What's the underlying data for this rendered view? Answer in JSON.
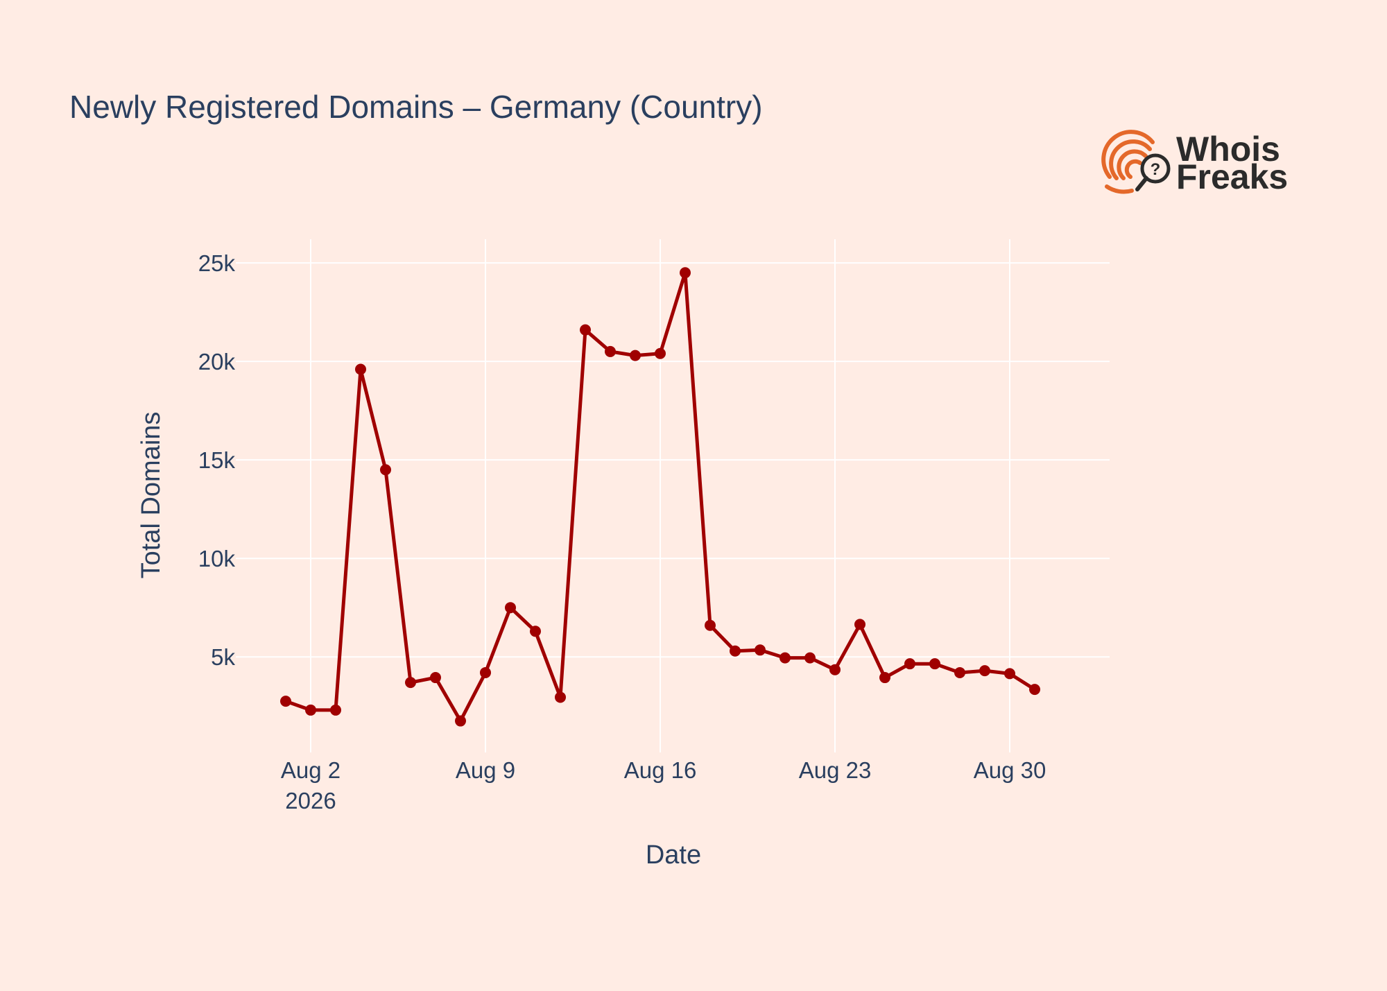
{
  "brand": {
    "line1": "Whois",
    "line2": "Freaks",
    "icon": "fingerprint-magnifier-icon",
    "colors": {
      "fingerprint": "#e4682a",
      "text": "#2b2b2b"
    }
  },
  "colors": {
    "background": "#ffece4",
    "line": "#a00000",
    "grid": "#ffffff",
    "text": "#2a3f5f"
  },
  "chart_data": {
    "type": "line",
    "title": "Newly Registered Domains – Germany (Country)",
    "xlabel": "Date",
    "ylabel": "Total Domains",
    "mode": "lines+markers",
    "grid": true,
    "x_ticks": [
      {
        "date": "2026-08-02",
        "label": "Aug 2",
        "sublabel": "2026"
      },
      {
        "date": "2026-08-09",
        "label": "Aug 9"
      },
      {
        "date": "2026-08-16",
        "label": "Aug 16"
      },
      {
        "date": "2026-08-23",
        "label": "Aug 23"
      },
      {
        "date": "2026-08-30",
        "label": "Aug 30"
      }
    ],
    "y_ticks": [
      {
        "value": 5000,
        "label": "5k"
      },
      {
        "value": 10000,
        "label": "10k"
      },
      {
        "value": 15000,
        "label": "15k"
      },
      {
        "value": 20000,
        "label": "20k"
      },
      {
        "value": 25000,
        "label": "25k"
      }
    ],
    "xlim": [
      "2026-07-30",
      "2026-09-03"
    ],
    "ylim": [
      150,
      26200
    ],
    "series": [
      {
        "x": [
          "2026-08-01",
          "2026-08-02",
          "2026-08-03",
          "2026-08-04",
          "2026-08-05",
          "2026-08-06",
          "2026-08-07",
          "2026-08-08",
          "2026-08-09",
          "2026-08-10",
          "2026-08-11",
          "2026-08-12",
          "2026-08-13",
          "2026-08-14",
          "2026-08-15",
          "2026-08-16",
          "2026-08-17",
          "2026-08-18",
          "2026-08-19",
          "2026-08-20",
          "2026-08-21",
          "2026-08-22",
          "2026-08-23",
          "2026-08-24",
          "2026-08-25",
          "2026-08-26",
          "2026-08-27",
          "2026-08-28",
          "2026-08-29",
          "2026-08-30",
          "2026-08-31"
        ],
        "values": [
          2750,
          2300,
          2300,
          19600,
          14500,
          3700,
          3950,
          1750,
          4200,
          7500,
          6300,
          2950,
          21600,
          20500,
          20300,
          20400,
          24500,
          6600,
          5300,
          5350,
          4950,
          4950,
          4350,
          6650,
          3950,
          4650,
          4650,
          4200,
          4300,
          4150,
          3350
        ],
        "color": "#a00000"
      }
    ]
  }
}
